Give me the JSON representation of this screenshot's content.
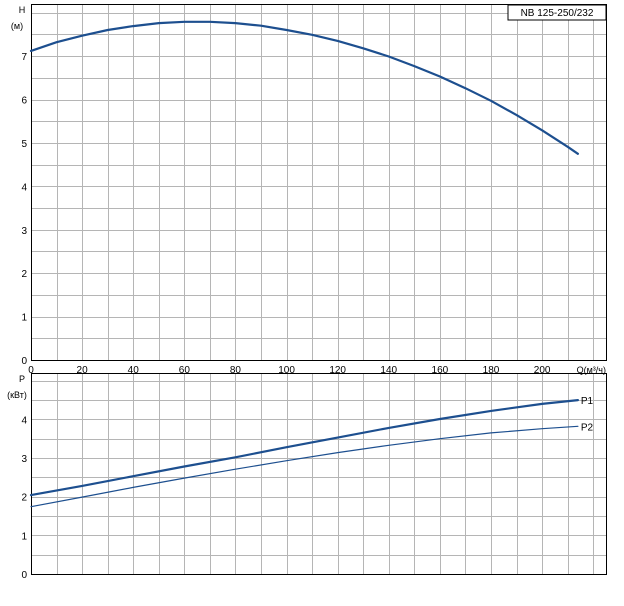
{
  "title": "NB 125-250/232",
  "chart_data": [
    {
      "type": "line",
      "xlabel": "Q(м³/ч)",
      "ylabel": "H",
      "yunit": "(м)",
      "xlim": [
        0,
        225
      ],
      "ylim": [
        0,
        8.2
      ],
      "x_ticks": [
        0,
        20,
        40,
        60,
        80,
        100,
        120,
        140,
        160,
        180,
        200
      ],
      "y_ticks": [
        0,
        1,
        2,
        3,
        4,
        5,
        6,
        7
      ],
      "grid": true,
      "series": [
        {
          "color": "#1d4f8f",
          "x": [
            0,
            10,
            20,
            30,
            40,
            50,
            60,
            70,
            80,
            90,
            100,
            110,
            120,
            130,
            140,
            150,
            160,
            170,
            180,
            190,
            200,
            210,
            214
          ],
          "y": [
            7.12,
            7.32,
            7.47,
            7.6,
            7.69,
            7.76,
            7.79,
            7.79,
            7.76,
            7.7,
            7.6,
            7.49,
            7.35,
            7.18,
            6.99,
            6.77,
            6.53,
            6.26,
            5.97,
            5.64,
            5.29,
            4.91,
            4.75
          ]
        }
      ]
    },
    {
      "type": "line",
      "xlabel": "",
      "ylabel": "P",
      "yunit": "(кВт)",
      "xlim": [
        0,
        225
      ],
      "ylim": [
        0,
        5.2
      ],
      "x_ticks": [
        0,
        20,
        40,
        60,
        80,
        100,
        120,
        140,
        160,
        180,
        200
      ],
      "y_ticks": [
        0,
        1,
        2,
        3,
        4
      ],
      "grid": true,
      "series": [
        {
          "name": "P1",
          "color": "#1d4f8f",
          "x": [
            0,
            20,
            40,
            60,
            80,
            100,
            120,
            140,
            160,
            180,
            200,
            214
          ],
          "y": [
            2.04,
            2.28,
            2.53,
            2.78,
            3.02,
            3.28,
            3.53,
            3.78,
            4.01,
            4.22,
            4.4,
            4.5
          ]
        },
        {
          "name": "P2",
          "color": "#1d4f8f",
          "x": [
            0,
            20,
            40,
            60,
            80,
            100,
            120,
            140,
            160,
            180,
            200,
            214
          ],
          "y": [
            1.74,
            1.99,
            2.24,
            2.48,
            2.71,
            2.93,
            3.14,
            3.33,
            3.5,
            3.65,
            3.76,
            3.82
          ]
        }
      ]
    }
  ]
}
